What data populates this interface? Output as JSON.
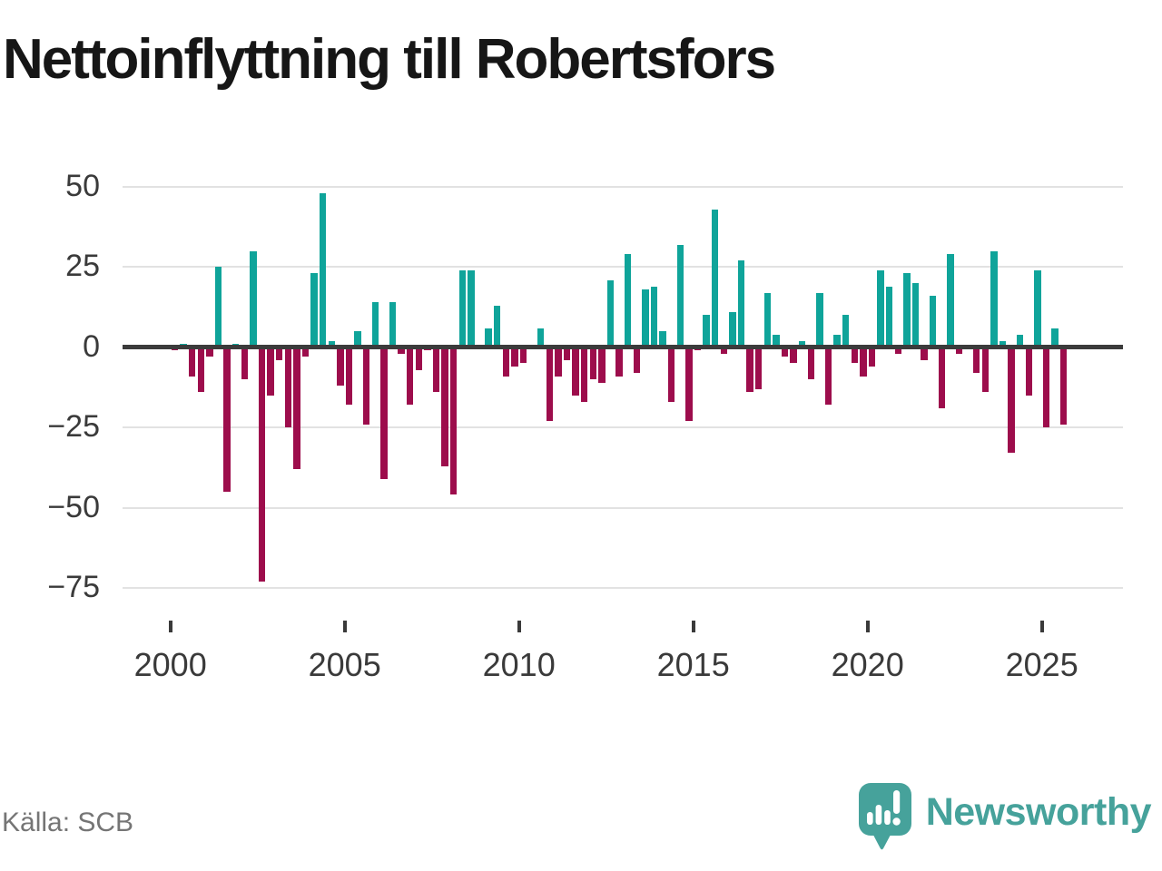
{
  "title": "Nettoinflyttning till Robertsfors",
  "source": "Källa: SCB",
  "brand": {
    "name": "Newsworthy"
  },
  "colors": {
    "positive": "#0fa49a",
    "negative": "#9d0d4c",
    "axis_text": "#3a3a3a",
    "zero_line": "#3b3b3b",
    "gridline": "#e2e2e2",
    "brand_teal": "#46a29b",
    "source_gray": "#757575"
  },
  "chart_data": {
    "type": "bar",
    "title": "Nettoinflyttning till Robertsfors",
    "frequency": "quarterly",
    "start_period": "2000Q1",
    "end_period": "2025Q3",
    "grid": true,
    "legend": false,
    "ylim": [
      -75,
      50
    ],
    "y_ticks": [
      50,
      25,
      0,
      -25,
      -50,
      -75
    ],
    "y_tick_labels": [
      "50",
      "25",
      "0",
      "−25",
      "−50",
      "−75"
    ],
    "x_ticks": [
      2000,
      2005,
      2010,
      2015,
      2020,
      2025
    ],
    "x_tick_labels": [
      "2000",
      "2005",
      "2010",
      "2015",
      "2020",
      "2025"
    ],
    "values": [
      -1,
      1,
      -9,
      -14,
      -3,
      25,
      -45,
      1,
      -10,
      30,
      -73,
      -15,
      -4,
      -25,
      -38,
      -3,
      23,
      48,
      2,
      -12,
      -18,
      5,
      -24,
      14,
      -41,
      14,
      -2,
      -18,
      -7,
      -1,
      -14,
      -37,
      -46,
      24,
      24,
      0,
      6,
      13,
      -9,
      -6,
      -5,
      0,
      6,
      -23,
      -9,
      -4,
      -15,
      -17,
      -10,
      -11,
      21,
      -9,
      29,
      -8,
      18,
      19,
      5,
      -17,
      32,
      -23,
      -1,
      10,
      43,
      -2,
      11,
      27,
      -14,
      -13,
      17,
      4,
      -3,
      -5,
      2,
      -10,
      17,
      -18,
      4,
      10,
      -5,
      -9,
      -6,
      24,
      19,
      -2,
      23,
      20,
      -4,
      16,
      -19,
      29,
      -2,
      0,
      -8,
      -14,
      30,
      2,
      -33,
      4,
      -15,
      24,
      -25,
      6,
      -24
    ]
  }
}
